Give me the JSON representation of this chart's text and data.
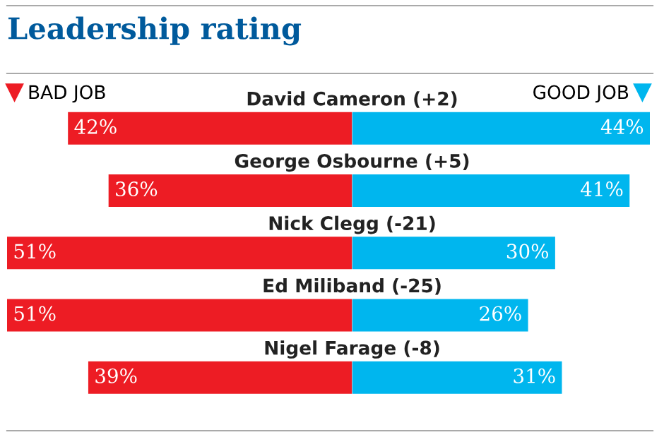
{
  "chart_data": [
    {
      "type": "bar",
      "title": "Leadership rating",
      "orientation": "horizontal",
      "xlim": [
        51,
        0
      ],
      "categories": [
        "David Cameron (+2)",
        "George Osbourne (+5)",
        "Nick Clegg (-21)",
        "Ed Miliband (-25)",
        "Nigel Farage (-8)"
      ],
      "series": [
        {
          "name": "BAD JOB",
          "color": "#ed1c24",
          "values": [
            42,
            36,
            51,
            51,
            39
          ],
          "value_labels": [
            "42%",
            "36%",
            "51%",
            "51%",
            "39%"
          ]
        }
      ],
      "legend": "top left",
      "tick_labels": false
    },
    {
      "type": "bar",
      "orientation": "horizontal",
      "xlim": [
        0,
        44
      ],
      "categories": [
        null,
        null,
        null,
        null,
        null
      ],
      "series": [
        {
          "name": "GOOD JOB",
          "color": "#00b6ee",
          "values": [
            44,
            41,
            30,
            26,
            31
          ],
          "value_labels": [
            "44%",
            "41%",
            "30%",
            "26%",
            "31%"
          ]
        }
      ],
      "legend": "top right",
      "tick_labels": false
    }
  ]
}
